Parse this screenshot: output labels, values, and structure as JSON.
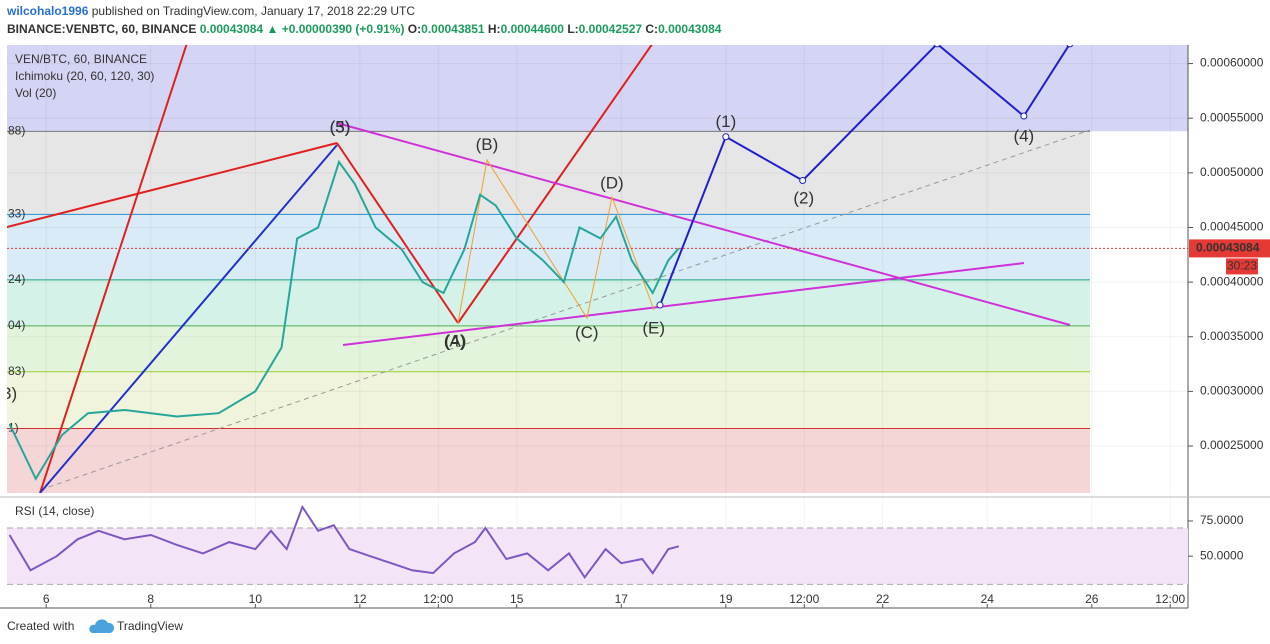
{
  "header": {
    "author": "wilcohalo1996",
    "published": "published on TradingView.com, January 17, 2018 22:29 UTC",
    "symbol": "BINANCE:VENBTC, 60, BINANCE",
    "price": "0.00043084",
    "arrow": "▲",
    "change": "+0.00000390 (+0.91%)",
    "o_label": "O:",
    "o": "0.00043851",
    "h_label": "H:",
    "h": "0.00044600",
    "l_label": "L:",
    "l": "0.00042527",
    "c_label": "C:",
    "c": "0.00043084"
  },
  "footer": {
    "created": "Created with",
    "brand": "TradingView"
  },
  "chart_data": [
    {
      "type": "line",
      "indicators": [
        "Ichimoku (20, 60, 120, 30)",
        "Vol (20)"
      ],
      "series": [
        {
          "name": "VEN/BTC, 60, BINANCE",
          "color": "#26a69a",
          "x": [
            5.3,
            5.8,
            6.3,
            6.8,
            7.5,
            8.5,
            9.3,
            10,
            10.5,
            10.8,
            11.2,
            11.6,
            11.9,
            12.3,
            12.8,
            13.2,
            13.6,
            14,
            14.3,
            14.6,
            15,
            15.5,
            15.9,
            16.2,
            16.6,
            16.9,
            17.2,
            17.6,
            17.9,
            18.1
          ],
          "values": [
            0.00027,
            0.00022,
            0.00026,
            0.00028,
            0.000283,
            0.000277,
            0.00028,
            0.0003,
            0.00034,
            0.00044,
            0.00045,
            0.00051,
            0.00049,
            0.00045,
            0.00043,
            0.0004,
            0.00039,
            0.00043,
            0.00048,
            0.00047,
            0.00044,
            0.00042,
            0.0004,
            0.00045,
            0.00044,
            0.00046,
            0.00042,
            0.00039,
            0.00042,
            0.00043084
          ]
        },
        {
          "color": "#1f1fd0",
          "x": [
            17.74,
            19.0,
            20.47,
            23.04,
            24.7,
            25.58
          ],
          "values": [
            0.000379,
            0.000533,
            0.000493,
            0.000618,
            0.000552,
            0.000618
          ]
        }
      ],
      "levels": [
        {
          "value": 0.000538,
          "label": "88)",
          "color": "#787878",
          "fill": "#e6e6e6"
        },
        {
          "value": 0.000462,
          "label": "33)",
          "color": "#2a8fd0",
          "fill": "#d9ebf7"
        },
        {
          "value": 0.000402,
          "label": "24)",
          "color": "#1aa37a",
          "fill": "#d4f2e8"
        },
        {
          "value": 0.00036,
          "label": "04)",
          "color": "#4caf50",
          "fill": "#e3f4dc"
        },
        {
          "value": 0.000318,
          "label": "83)",
          "color": "#9acd32",
          "fill": "#f0f4dc"
        },
        {
          "value": 0.000266,
          "label": "1)",
          "color": "#d32f2f",
          "fill": "#f5d6d6"
        }
      ],
      "top_fill": "#d4d4f4",
      "last_price": {
        "value": 0.00043084,
        "label": "0.00043084"
      },
      "countdown": "30:23",
      "annotations": [
        {
          "text": "(3)",
          "x": 11.62,
          "y": 0.000541,
          "color": "#c62828"
        },
        {
          "text": "(5)",
          "x": 11.62,
          "y": 0.000541,
          "color": "#8e24aa"
        },
        {
          "text": "(A)",
          "x": 13.82,
          "y": 0.000345,
          "color": "#c87a1a"
        },
        {
          "text": "(4)",
          "x": 13.82,
          "y": 0.000345,
          "color": "#c62828"
        },
        {
          "text": "(B)",
          "x": 14.43,
          "y": 0.000525,
          "color": "#c87a1a"
        },
        {
          "text": "(C)",
          "x": 16.34,
          "y": 0.000353,
          "color": "#c87a1a"
        },
        {
          "text": "(D)",
          "x": 16.82,
          "y": 0.00049,
          "color": "#c87a1a"
        },
        {
          "text": "(E)",
          "x": 17.62,
          "y": 0.000357,
          "color": "#c87a1a"
        },
        {
          "text": "(1)",
          "x": 19.0,
          "y": 0.000546,
          "color": "#2a2aaa"
        },
        {
          "text": "(2)",
          "x": 20.49,
          "y": 0.000476,
          "color": "#2a2aaa"
        },
        {
          "text": "(4)",
          "x": 24.7,
          "y": 0.000533,
          "color": "#2a2aaa"
        },
        {
          "text": "3)",
          "x": 5.3,
          "y": 0.000297,
          "color": "#2a2aaa"
        }
      ],
      "xlim": [
        5.25,
        27.84
      ],
      "xticks": [
        6,
        8,
        10,
        12,
        {
          "value": 13.5,
          "label": "12:00"
        },
        15,
        17,
        19,
        {
          "value": 20.5,
          "label": "12:00"
        },
        22,
        24,
        26,
        {
          "value": 27.5,
          "label": "12:00"
        }
      ],
      "ylim": [
        0.000207,
        0.000617
      ],
      "yticks": [
        {
          "value": 0.00025,
          "label": "0.00025000"
        },
        {
          "value": 0.0003,
          "label": "0.00030000"
        },
        {
          "value": 0.00035,
          "label": "0.00035000"
        },
        {
          "value": 0.0004,
          "label": "0.00040000"
        },
        {
          "value": 0.00045,
          "label": "0.00045000"
        },
        {
          "value": 0.0005,
          "label": "0.00050000"
        },
        {
          "value": 0.00055,
          "label": "0.00055000"
        },
        {
          "value": 0.0006,
          "label": "0.00060000"
        }
      ],
      "grid": true
    },
    {
      "type": "line",
      "title": "RSI (14, close)",
      "color": "#7e57c2",
      "fill": "#f3e5f7",
      "x": [
        5.3,
        5.7,
        6.2,
        6.6,
        7,
        7.5,
        8,
        8.5,
        9,
        9.5,
        10,
        10.3,
        10.6,
        10.9,
        11.2,
        11.5,
        11.8,
        12.2,
        12.6,
        13,
        13.4,
        13.8,
        14.2,
        14.4,
        14.8,
        15.2,
        15.6,
        16,
        16.3,
        16.7,
        17,
        17.4,
        17.6,
        17.9,
        18.1
      ],
      "values": [
        65,
        40,
        50,
        62,
        68,
        62,
        65,
        58,
        52,
        60,
        55,
        68,
        55,
        85,
        68,
        72,
        55,
        50,
        45,
        40,
        38,
        52,
        60,
        70,
        48,
        52,
        40,
        52,
        35,
        55,
        45,
        48,
        38,
        55,
        57
      ],
      "bands": [
        30,
        70
      ],
      "ylim": [
        26,
        92
      ],
      "yticks": [
        {
          "value": 75,
          "label": "75.0000"
        },
        {
          "value": 50,
          "label": "50.0000"
        }
      ]
    }
  ]
}
